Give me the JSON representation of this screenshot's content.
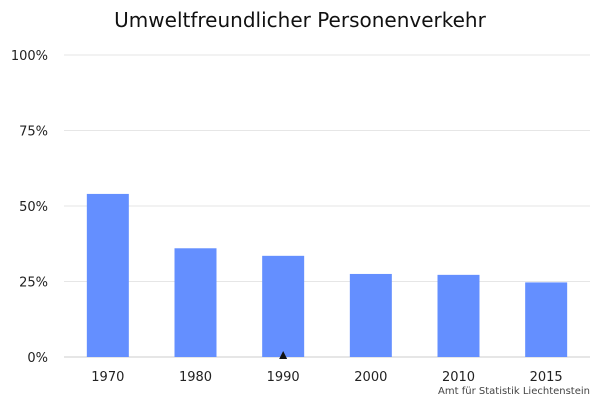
{
  "chart_data": {
    "type": "bar",
    "title": "Umweltfreundlicher Personenverkehr",
    "source": "Amt für Statistik Liechtenstein",
    "categories": [
      "1970",
      "1980",
      "1990",
      "2000",
      "2010",
      "2015"
    ],
    "values": [
      54,
      36,
      33.5,
      27.5,
      27.2,
      24.7
    ],
    "ylim": [
      0,
      100
    ],
    "y_ticks": [
      0,
      25,
      50,
      75,
      100
    ],
    "y_tick_labels": [
      "0%",
      "25%",
      "50%",
      "75%",
      "100%"
    ],
    "grid": true,
    "bar_color": "#648fff",
    "marker": {
      "category": "1990",
      "symbol": "▲"
    }
  }
}
